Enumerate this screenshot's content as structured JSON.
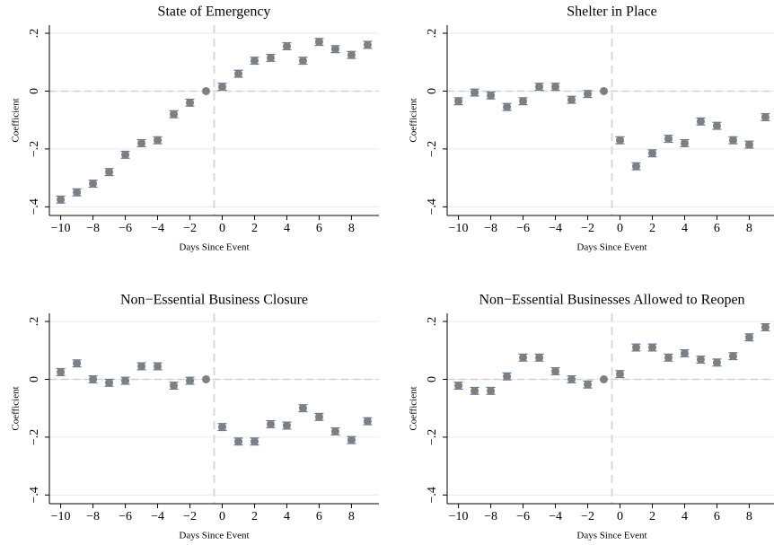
{
  "chart_data": [
    {
      "type": "scatter",
      "title": "State of Emergency",
      "xlabel": "Days Since Event",
      "ylabel": "Coefficient",
      "x": [
        -10,
        -9,
        -8,
        -7,
        -6,
        -5,
        -4,
        -3,
        -2,
        -1,
        0,
        1,
        2,
        3,
        4,
        5,
        6,
        7,
        8,
        9
      ],
      "values": [
        -0.375,
        -0.35,
        -0.32,
        -0.28,
        -0.22,
        -0.18,
        -0.17,
        -0.08,
        -0.04,
        0,
        0.015,
        0.06,
        0.105,
        0.115,
        0.155,
        0.105,
        0.17,
        0.145,
        0.125,
        0.16
      ],
      "errors": [
        0.012,
        0.012,
        0.012,
        0.012,
        0.012,
        0.012,
        0.012,
        0.012,
        0.012,
        0,
        0.012,
        0.012,
        0.012,
        0.012,
        0.012,
        0.012,
        0.012,
        0.012,
        0.012,
        0.012
      ],
      "color": "#7f7f7f",
      "error_color": "#4a78b5",
      "xlim": [
        -10.7,
        9.7
      ],
      "ylim": [
        -0.43,
        0.228
      ],
      "xticks": [
        {
          "value": -10,
          "label": "−10"
        },
        {
          "value": -8,
          "label": "−8"
        },
        {
          "value": -6,
          "label": "−6"
        },
        {
          "value": -4,
          "label": "−4"
        },
        {
          "value": -2,
          "label": "−2"
        },
        0,
        2,
        4,
        6,
        8
      ],
      "yticks": [
        {
          "value": -0.4,
          "label": "−.4"
        },
        {
          "value": -0.2,
          "label": "−.2"
        },
        0,
        {
          "value": 0.2,
          "label": ".2"
        }
      ],
      "hline": 0,
      "vline": -0.5,
      "grid": true
    },
    {
      "type": "scatter",
      "title": "Shelter in Place",
      "xlabel": "Days Since Event",
      "ylabel": "Coefficient",
      "x": [
        -10,
        -9,
        -8,
        -7,
        -6,
        -5,
        -4,
        -3,
        -2,
        -1,
        0,
        1,
        2,
        3,
        4,
        5,
        6,
        7,
        8,
        9
      ],
      "values": [
        -0.035,
        -0.005,
        -0.015,
        -0.055,
        -0.035,
        0.015,
        0.015,
        -0.03,
        -0.01,
        0,
        -0.17,
        -0.26,
        -0.215,
        -0.165,
        -0.18,
        -0.105,
        -0.12,
        -0.17,
        -0.185,
        -0.09
      ],
      "errors": [
        0.012,
        0.012,
        0.012,
        0.012,
        0.012,
        0.012,
        0.012,
        0.012,
        0.012,
        0,
        0.012,
        0.012,
        0.012,
        0.012,
        0.012,
        0.012,
        0.012,
        0.012,
        0.012,
        0.012
      ],
      "color": "#7f7f7f",
      "error_color": "#4a78b5",
      "xlim": [
        -10.7,
        9.7
      ],
      "ylim": [
        -0.43,
        0.228
      ],
      "xticks": [
        {
          "value": -10,
          "label": "−10"
        },
        {
          "value": -8,
          "label": "−8"
        },
        {
          "value": -6,
          "label": "−6"
        },
        {
          "value": -4,
          "label": "−4"
        },
        {
          "value": -2,
          "label": "−2"
        },
        0,
        2,
        4,
        6,
        8
      ],
      "yticks": [
        {
          "value": -0.4,
          "label": "−.4"
        },
        {
          "value": -0.2,
          "label": "−.2"
        },
        0,
        {
          "value": 0.2,
          "label": ".2"
        }
      ],
      "hline": 0,
      "vline": -0.5,
      "grid": true
    },
    {
      "type": "scatter",
      "title": "Non−Essential Business Closure",
      "xlabel": "Days Since Event",
      "ylabel": "Coefficient",
      "x": [
        -10,
        -9,
        -8,
        -7,
        -6,
        -5,
        -4,
        -3,
        -2,
        -1,
        0,
        1,
        2,
        3,
        4,
        5,
        6,
        7,
        8,
        9
      ],
      "values": [
        0.025,
        0.055,
        0,
        -0.012,
        -0.005,
        0.045,
        0.045,
        -0.022,
        -0.005,
        0,
        -0.165,
        -0.215,
        -0.215,
        -0.155,
        -0.16,
        -0.1,
        -0.13,
        -0.18,
        -0.21,
        -0.145
      ],
      "errors": [
        0.012,
        0.012,
        0.012,
        0.012,
        0.012,
        0.012,
        0.012,
        0.012,
        0.012,
        0,
        0.012,
        0.012,
        0.012,
        0.012,
        0.012,
        0.012,
        0.012,
        0.012,
        0.012,
        0.012
      ],
      "color": "#7f7f7f",
      "error_color": "#4a78b5",
      "xlim": [
        -10.7,
        9.7
      ],
      "ylim": [
        -0.43,
        0.228
      ],
      "xticks": [
        {
          "value": -10,
          "label": "−10"
        },
        {
          "value": -8,
          "label": "−8"
        },
        {
          "value": -6,
          "label": "−6"
        },
        {
          "value": -4,
          "label": "−4"
        },
        {
          "value": -2,
          "label": "−2"
        },
        0,
        2,
        4,
        6,
        8
      ],
      "yticks": [
        {
          "value": -0.4,
          "label": "−.4"
        },
        {
          "value": -0.2,
          "label": "−.2"
        },
        0,
        {
          "value": 0.2,
          "label": ".2"
        }
      ],
      "hline": 0,
      "vline": -0.5,
      "grid": true
    },
    {
      "type": "scatter",
      "title": "Non−Essential Businesses Allowed to Reopen",
      "xlabel": "Days Since Event",
      "ylabel": "Coefficient",
      "x": [
        -10,
        -9,
        -8,
        -7,
        -6,
        -5,
        -4,
        -3,
        -2,
        -1,
        0,
        1,
        2,
        3,
        4,
        5,
        6,
        7,
        8,
        9
      ],
      "values": [
        -0.022,
        -0.04,
        -0.04,
        0.01,
        0.075,
        0.075,
        0.028,
        0,
        -0.018,
        0,
        0.018,
        0.11,
        0.11,
        0.075,
        0.09,
        0.068,
        0.058,
        0.08,
        0.145,
        0.18
      ],
      "errors": [
        0.012,
        0.012,
        0.012,
        0.012,
        0.012,
        0.012,
        0.012,
        0.012,
        0.012,
        0,
        0.012,
        0.012,
        0.012,
        0.012,
        0.012,
        0.012,
        0.012,
        0.012,
        0.012,
        0.012
      ],
      "color": "#7f7f7f",
      "error_color": "#4a78b5",
      "xlim": [
        -10.7,
        9.7
      ],
      "ylim": [
        -0.43,
        0.228
      ],
      "xticks": [
        {
          "value": -10,
          "label": "−10"
        },
        {
          "value": -8,
          "label": "−8"
        },
        {
          "value": -6,
          "label": "−6"
        },
        {
          "value": -4,
          "label": "−4"
        },
        {
          "value": -2,
          "label": "−2"
        },
        0,
        2,
        4,
        6,
        8
      ],
      "yticks": [
        {
          "value": -0.4,
          "label": "−.4"
        },
        {
          "value": -0.2,
          "label": "−.2"
        },
        0,
        {
          "value": 0.2,
          "label": ".2"
        }
      ],
      "hline": 0,
      "vline": -0.5,
      "grid": true
    }
  ]
}
